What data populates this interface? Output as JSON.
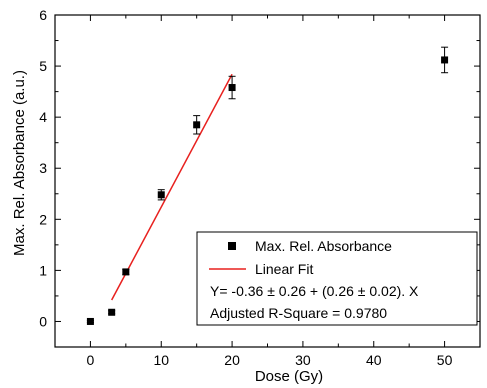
{
  "chart_data": {
    "type": "scatter",
    "xlabel": "Dose (Gy)",
    "ylabel": "Max. Rel. Absorbance (a.u.)",
    "xlim": [
      -5,
      55
    ],
    "ylim": [
      -0.5,
      6
    ],
    "x_ticks": [
      0,
      10,
      20,
      30,
      40,
      50
    ],
    "y_ticks": [
      0,
      1,
      2,
      3,
      4,
      5,
      6
    ],
    "grid": false,
    "legend_position": "bottom-right",
    "series": [
      {
        "name": "Max. Rel. Absorbance",
        "marker": "square",
        "color": "#000000",
        "points": [
          {
            "x": 0,
            "y": 0.0,
            "err": 0.02
          },
          {
            "x": 3,
            "y": 0.18,
            "err": 0.03
          },
          {
            "x": 5,
            "y": 0.97,
            "err": 0.05
          },
          {
            "x": 10,
            "y": 2.48,
            "err": 0.1
          },
          {
            "x": 15,
            "y": 3.85,
            "err": 0.18
          },
          {
            "x": 20,
            "y": 4.58,
            "err": 0.22
          },
          {
            "x": 50,
            "y": 5.12,
            "err": 0.25
          }
        ]
      },
      {
        "name": "Linear Fit",
        "type": "line",
        "color": "#e8211f",
        "x": [
          3,
          20
        ],
        "y": [
          0.42,
          4.84
        ]
      }
    ],
    "annotations": [
      "Y= -0.36 ± 0.26 + (0.26 ± 0.02). X",
      "Adjusted R-Square = 0.9780"
    ]
  }
}
